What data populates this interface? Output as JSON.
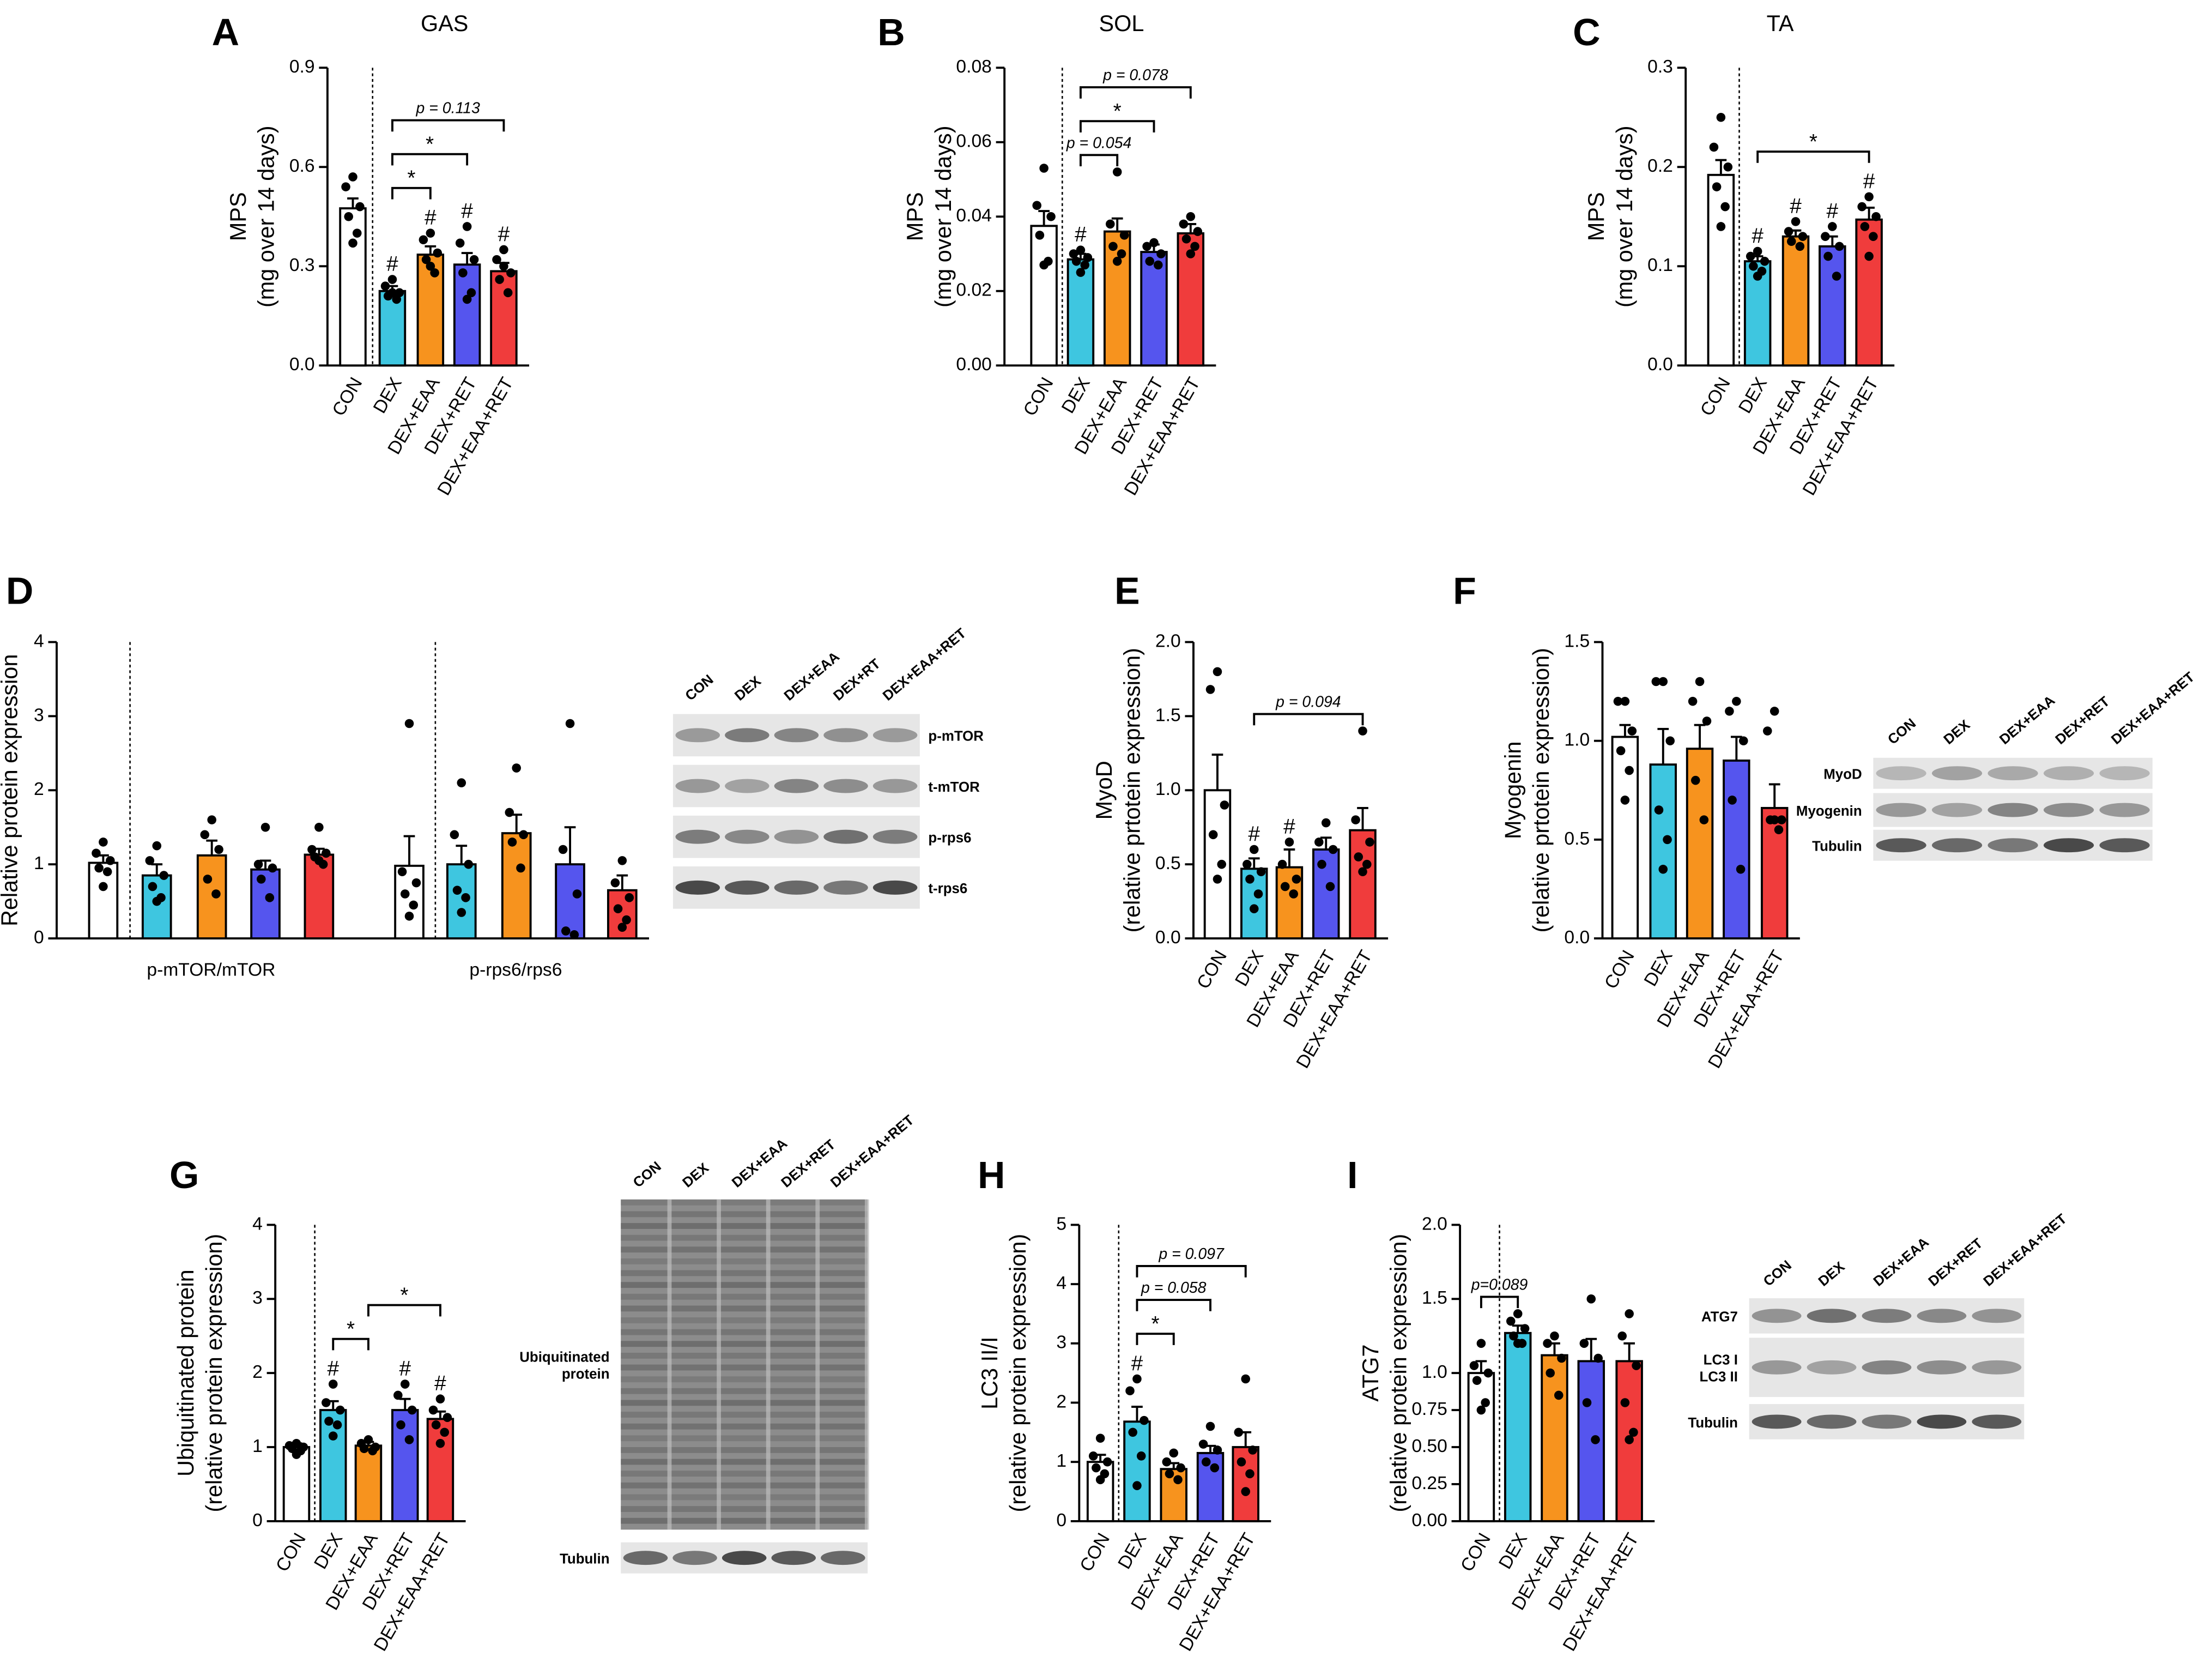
{
  "chart_data": [
    {
      "type": "bar",
      "letter": "A",
      "title": "GAS",
      "ylabel": [
        "MPS",
        "(mg over 14 days)"
      ],
      "categories": [
        "CON",
        "DEX",
        "DEX+EAA",
        "DEX+RET",
        "DEX+EAA+RET"
      ],
      "colors": [
        "#ffffff",
        "#3ec6e0",
        "#f7931e",
        "#5555ee",
        "#f03c3c"
      ],
      "values": [
        0.475,
        0.225,
        0.335,
        0.305,
        0.285
      ],
      "errors": [
        0.03,
        0.015,
        0.025,
        0.035,
        0.025
      ],
      "points": [
        [
          0.57,
          0.54,
          0.48,
          0.45,
          0.4,
          0.37
        ],
        [
          0.26,
          0.24,
          0.22,
          0.21,
          0.2,
          0.22
        ],
        [
          0.4,
          0.38,
          0.34,
          0.32,
          0.28,
          0.3
        ],
        [
          0.42,
          0.37,
          0.32,
          0.28,
          0.22,
          0.2
        ],
        [
          0.35,
          0.32,
          0.28,
          0.26,
          0.22,
          0.3
        ]
      ],
      "annotations": [
        null,
        "#",
        "#",
        "#",
        "#"
      ],
      "brackets": [
        {
          "from": "DEX",
          "to": "DEX+EAA",
          "label": "*"
        },
        {
          "from": "DEX",
          "to": "DEX+RET",
          "label": "*"
        },
        {
          "from": "DEX",
          "to": "DEX+EAA+RET",
          "label": "p = 0.113"
        }
      ],
      "divider": true,
      "ylim": [
        0,
        0.9
      ],
      "yticks": [
        {
          "value": 0,
          "label": "0.0"
        },
        0.3,
        0.6,
        0.9
      ]
    },
    {
      "type": "bar",
      "letter": "B",
      "title": "SOL",
      "ylabel": [
        "MPS",
        "(mg over 14 days)"
      ],
      "categories": [
        "CON",
        "DEX",
        "DEX+EAA",
        "DEX+RET",
        "DEX+EAA+RET"
      ],
      "colors": [
        "#ffffff",
        "#3ec6e0",
        "#f7931e",
        "#5555ee",
        "#f03c3c"
      ],
      "values": [
        0.0375,
        0.0285,
        0.036,
        0.0305,
        0.0355
      ],
      "errors": [
        0.004,
        0.0015,
        0.0035,
        0.002,
        0.0025
      ],
      "points": [
        [
          0.053,
          0.043,
          0.04,
          0.035,
          0.028,
          0.027
        ],
        [
          0.031,
          0.03,
          0.029,
          0.028,
          0.027,
          0.025
        ],
        [
          0.052,
          0.038,
          0.035,
          0.032,
          0.03,
          0.028
        ],
        [
          0.033,
          0.032,
          0.03,
          0.028,
          0.027
        ],
        [
          0.04,
          0.038,
          0.036,
          0.034,
          0.032,
          0.03
        ]
      ],
      "annotations": [
        null,
        "#",
        null,
        null,
        null
      ],
      "brackets": [
        {
          "from": "DEX",
          "to": "DEX+EAA",
          "label": "p = 0.054"
        },
        {
          "from": "DEX",
          "to": "DEX+RET",
          "label": "*"
        },
        {
          "from": "DEX",
          "to": "DEX+EAA+RET",
          "label": "p = 0.078"
        }
      ],
      "divider": true,
      "ylim": [
        0,
        0.08
      ],
      "yticks": [
        {
          "value": 0,
          "label": "0.00"
        },
        0.02,
        0.04,
        0.06,
        0.08
      ]
    },
    {
      "type": "bar",
      "letter": "C",
      "title": "TA",
      "ylabel": [
        "MPS",
        "(mg over 14 days)"
      ],
      "categories": [
        "CON",
        "DEX",
        "DEX+EAA",
        "DEX+RET",
        "DEX+EAA+RET"
      ],
      "colors": [
        "#ffffff",
        "#3ec6e0",
        "#f7931e",
        "#5555ee",
        "#f03c3c"
      ],
      "values": [
        0.192,
        0.105,
        0.13,
        0.12,
        0.147
      ],
      "errors": [
        0.015,
        0.005,
        0.006,
        0.01,
        0.012
      ],
      "points": [
        [
          0.25,
          0.22,
          0.2,
          0.18,
          0.16,
          0.14
        ],
        [
          0.115,
          0.11,
          0.105,
          0.1,
          0.095,
          0.09
        ],
        [
          0.145,
          0.135,
          0.13,
          0.125,
          0.12
        ],
        [
          0.14,
          0.13,
          0.12,
          0.11,
          0.09
        ],
        [
          0.17,
          0.16,
          0.15,
          0.14,
          0.13,
          0.11
        ]
      ],
      "annotations": [
        null,
        "#",
        "#",
        "#",
        "#"
      ],
      "brackets": [
        {
          "from": "DEX",
          "to": "DEX+EAA+RET",
          "label": "*"
        }
      ],
      "divider": true,
      "ylim": [
        0,
        0.3
      ],
      "yticks": [
        {
          "value": 0,
          "label": "0.0"
        },
        0.1,
        0.2,
        0.3
      ]
    },
    {
      "type": "grouped_bar",
      "letter": "D",
      "ylabel": [
        "Relative protein expression"
      ],
      "groups": [
        "p-mTOR/mTOR",
        "p-rps6/rps6"
      ],
      "series": [
        {
          "color": "#ffffff",
          "values": [
            1.02,
            0.98
          ],
          "errors": [
            0.1,
            0.4
          ],
          "points": [
            [
              1.3,
              1.15,
              1.05,
              0.95,
              0.9,
              0.7
            ],
            [
              2.9,
              0.9,
              0.75,
              0.6,
              0.45,
              0.3
            ]
          ]
        },
        {
          "color": "#3ec6e0",
          "values": [
            0.85,
            1.0
          ],
          "errors": [
            0.15,
            0.25
          ],
          "points": [
            [
              1.25,
              1.05,
              0.85,
              0.7,
              0.55,
              0.5
            ],
            [
              2.1,
              1.4,
              1.0,
              0.65,
              0.55,
              0.35
            ]
          ]
        },
        {
          "color": "#f7931e",
          "values": [
            1.12,
            1.42
          ],
          "errors": [
            0.2,
            0.25
          ],
          "points": [
            [
              1.6,
              1.4,
              1.2,
              0.8,
              0.6
            ],
            [
              2.3,
              1.7,
              1.4,
              1.3,
              0.95
            ]
          ]
        },
        {
          "color": "#5555ee",
          "values": [
            0.93,
            1.0
          ],
          "errors": [
            0.12,
            0.5
          ],
          "points": [
            [
              1.5,
              1.0,
              0.95,
              0.8,
              0.55
            ],
            [
              2.9,
              1.2,
              0.6,
              0.1,
              0.05
            ]
          ]
        },
        {
          "color": "#f03c3c",
          "values": [
            1.13,
            0.65
          ],
          "errors": [
            0.08,
            0.2
          ],
          "points": [
            [
              1.5,
              1.2,
              1.15,
              1.1,
              1.0,
              1.05
            ],
            [
              1.05,
              0.75,
              0.55,
              0.4,
              0.25,
              0.15
            ]
          ]
        }
      ],
      "divider": true,
      "ylim": [
        0,
        4
      ],
      "yticks": [
        0,
        1,
        2,
        3,
        4
      ]
    },
    {
      "type": "bar",
      "letter": "E",
      "ylabel": [
        "MyoD",
        "(relative prtotein expression)"
      ],
      "categories": [
        "CON",
        "DEX",
        "DEX+EAA",
        "DEX+RET",
        "DEX+EAA+RET"
      ],
      "colors": [
        "#ffffff",
        "#3ec6e0",
        "#f7931e",
        "#5555ee",
        "#f03c3c"
      ],
      "values": [
        1.0,
        0.47,
        0.48,
        0.6,
        0.73
      ],
      "errors": [
        0.24,
        0.07,
        0.12,
        0.08,
        0.15
      ],
      "points": [
        [
          1.8,
          1.68,
          0.9,
          0.7,
          0.5,
          0.4
        ],
        [
          0.6,
          0.5,
          0.45,
          0.4,
          0.3,
          0.2
        ],
        [
          0.65,
          0.5,
          0.4,
          0.35,
          0.3
        ],
        [
          0.78,
          0.65,
          0.6,
          0.5,
          0.35
        ],
        [
          1.4,
          0.8,
          0.65,
          0.55,
          0.5,
          0.45
        ]
      ],
      "annotations": [
        null,
        "#",
        "#",
        null,
        null
      ],
      "brackets": [
        {
          "from": "DEX",
          "to": "DEX+EAA+RET",
          "label": "p = 0.094"
        }
      ],
      "divider": false,
      "ylim": [
        0,
        2
      ],
      "yticks": [
        {
          "value": 0,
          "label": "0.0"
        },
        0.5,
        {
          "value": 1,
          "label": "1.0"
        },
        1.5,
        {
          "value": 2,
          "label": "2.0"
        }
      ]
    },
    {
      "type": "bar",
      "letter": "F",
      "ylabel": [
        "Myogenin",
        "(relative prtotein expression)"
      ],
      "categories": [
        "CON",
        "DEX",
        "DEX+EAA",
        "DEX+RET",
        "DEX+EAA+RET"
      ],
      "colors": [
        "#ffffff",
        "#3ec6e0",
        "#f7931e",
        "#5555ee",
        "#f03c3c"
      ],
      "values": [
        1.02,
        0.88,
        0.96,
        0.9,
        0.66
      ],
      "errors": [
        0.06,
        0.18,
        0.12,
        0.12,
        0.12
      ],
      "points": [
        [
          1.2,
          1.2,
          1.05,
          0.95,
          0.85,
          0.7
        ],
        [
          1.3,
          1.3,
          1.0,
          0.65,
          0.5,
          0.35
        ],
        [
          1.3,
          1.2,
          1.1,
          0.8,
          0.6
        ],
        [
          1.2,
          1.15,
          1.0,
          0.7,
          0.35
        ],
        [
          1.15,
          1.05,
          0.6,
          0.6,
          0.55,
          0.6
        ]
      ],
      "annotations": [
        null,
        null,
        null,
        null,
        null
      ],
      "brackets": [],
      "divider": false,
      "ylim": [
        0,
        1.5
      ],
      "yticks": [
        {
          "value": 0,
          "label": "0.0"
        },
        0.5,
        {
          "value": 1,
          "label": "1.0"
        },
        1.5
      ]
    },
    {
      "type": "bar",
      "letter": "G",
      "ylabel": [
        "Ubiquitinated protein",
        "(relative protein expression)"
      ],
      "categories": [
        "CON",
        "DEX",
        "DEX+EAA",
        "DEX+RET",
        "DEX+EAA+RET"
      ],
      "colors": [
        "#ffffff",
        "#3ec6e0",
        "#f7931e",
        "#5555ee",
        "#f03c3c"
      ],
      "values": [
        1.0,
        1.5,
        1.02,
        1.5,
        1.38
      ],
      "errors": [
        0.05,
        0.12,
        0.05,
        0.15,
        0.1
      ],
      "points": [
        [
          1.05,
          1.02,
          1.0,
          0.98,
          0.95,
          0.9
        ],
        [
          1.85,
          1.6,
          1.5,
          1.35,
          1.3,
          1.15
        ],
        [
          1.1,
          1.05,
          1.0,
          0.98,
          0.95
        ],
        [
          1.85,
          1.7,
          1.5,
          1.3,
          1.1
        ],
        [
          1.65,
          1.5,
          1.4,
          1.3,
          1.2,
          1.05
        ]
      ],
      "annotations": [
        null,
        "#",
        null,
        "#",
        "#"
      ],
      "brackets": [
        {
          "from": "DEX",
          "to": "DEX+EAA",
          "label": "*"
        },
        {
          "from": "DEX+EAA",
          "to": "DEX+EAA+RET",
          "label": "*"
        }
      ],
      "divider": true,
      "ylim": [
        0,
        4
      ],
      "yticks": [
        0,
        1,
        2,
        3,
        4
      ]
    },
    {
      "type": "bar",
      "letter": "H",
      "ylabel": [
        "LC3 II/I",
        "(relative protein expression)"
      ],
      "categories": [
        "CON",
        "DEX",
        "DEX+EAA",
        "DEX+RET",
        "DEX+EAA+RET"
      ],
      "colors": [
        "#ffffff",
        "#3ec6e0",
        "#f7931e",
        "#5555ee",
        "#f03c3c"
      ],
      "values": [
        1.0,
        1.68,
        0.88,
        1.15,
        1.25
      ],
      "errors": [
        0.12,
        0.25,
        0.1,
        0.12,
        0.25
      ],
      "points": [
        [
          1.4,
          1.1,
          1.0,
          0.9,
          0.8,
          0.7
        ],
        [
          2.4,
          2.2,
          1.7,
          1.5,
          1.1,
          0.6
        ],
        [
          1.15,
          1.0,
          0.9,
          0.8,
          0.7
        ],
        [
          1.6,
          1.3,
          1.2,
          1.0,
          0.9
        ],
        [
          2.4,
          1.5,
          1.2,
          1.0,
          0.8,
          0.5
        ]
      ],
      "annotations": [
        null,
        "#",
        null,
        null,
        null
      ],
      "brackets": [
        {
          "from": "DEX",
          "to": "DEX+EAA",
          "label": "*"
        },
        {
          "from": "DEX",
          "to": "DEX+RET",
          "label": "p = 0.058"
        },
        {
          "from": "DEX",
          "to": "DEX+EAA+RET",
          "label": "p = 0.097"
        }
      ],
      "divider": true,
      "ylim": [
        0,
        5
      ],
      "yticks": [
        0,
        1,
        2,
        3,
        4,
        5
      ]
    },
    {
      "type": "bar",
      "letter": "I",
      "ylabel": [
        "ATG7",
        "(relative protein expression)"
      ],
      "categories": [
        "CON",
        "DEX",
        "DEX+EAA",
        "DEX+RET",
        "DEX+EAA+RET"
      ],
      "colors": [
        "#ffffff",
        "#3ec6e0",
        "#f7931e",
        "#5555ee",
        "#f03c3c"
      ],
      "values": [
        1.0,
        1.27,
        1.12,
        1.08,
        1.08
      ],
      "errors": [
        0.08,
        0.05,
        0.08,
        0.15,
        0.12
      ],
      "points": [
        [
          1.2,
          1.05,
          1.0,
          0.95,
          0.8,
          0.75
        ],
        [
          1.4,
          1.35,
          1.3,
          1.25,
          1.2,
          1.2
        ],
        [
          1.25,
          1.2,
          1.1,
          1.0,
          0.85
        ],
        [
          1.5,
          1.2,
          1.1,
          0.8,
          0.55
        ],
        [
          1.4,
          1.25,
          1.05,
          0.8,
          0.6,
          0.55
        ]
      ],
      "annotations": [
        null,
        null,
        null,
        null,
        null
      ],
      "brackets": [
        {
          "from": "CON",
          "to": "DEX",
          "label": "p=0.089"
        }
      ],
      "divider": true,
      "ylim": [
        0,
        2
      ],
      "yticks": [
        {
          "value": 0,
          "label": "0.00"
        },
        0.25,
        {
          "value": 0.5,
          "label": "0.50"
        },
        0.75,
        {
          "value": 1,
          "label": "1.0"
        },
        1.5,
        {
          "value": 2,
          "label": "2.0"
        }
      ]
    }
  ],
  "blots": [
    {
      "lanes": [
        "CON",
        "DEX",
        "DEX+EAA",
        "DEX+RT",
        "DEX+EAA+RET"
      ],
      "rows": [
        [
          "p-mTOR"
        ],
        [
          "t-mTOR"
        ],
        [
          "p-rps6"
        ],
        [
          "t-rps6"
        ]
      ]
    },
    {
      "lanes": [
        "CON",
        "DEX",
        "DEX+EAA",
        "DEX+RET",
        "DEX+EAA+RET"
      ],
      "rows": [
        [
          "MyoD"
        ],
        [
          "Myogenin"
        ],
        [
          "Tubulin"
        ]
      ]
    },
    {
      "lanes": [
        "CON",
        "DEX",
        "DEX+EAA",
        "DEX+RET",
        "DEX+EAA+RET"
      ],
      "rows": [
        [
          "Ubiquitinated",
          "protein"
        ],
        [
          "Tubulin"
        ]
      ]
    },
    {
      "lanes": [
        "CON",
        "DEX",
        "DEX+EAA",
        "DEX+RET",
        "DEX+EAA+RET"
      ],
      "rows": [
        [
          "ATG7"
        ],
        [
          "LC3 I",
          "LC3 II"
        ],
        [
          "Tubulin"
        ]
      ]
    }
  ]
}
